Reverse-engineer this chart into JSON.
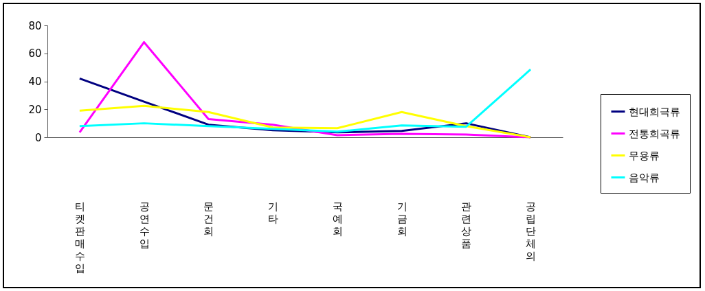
{
  "chart_data": {
    "type": "line",
    "categories": [
      "티켓판매수입",
      "공연수입",
      "문건회",
      "기타",
      "국예회",
      "기금회",
      "관련상품",
      "공립단체의"
    ],
    "series": [
      {
        "name": "현대희극류",
        "color": "#000080",
        "values": [
          42,
          25.5,
          9,
          5,
          3.5,
          4.5,
          10,
          0
        ]
      },
      {
        "name": "전통희곡류",
        "color": "#ff00ff",
        "values": [
          3.5,
          68,
          13,
          9,
          1.5,
          2.5,
          2,
          0
        ]
      },
      {
        "name": "무용류",
        "color": "#ffff00",
        "values": [
          19,
          22.5,
          18,
          7,
          6.5,
          18,
          8,
          0
        ]
      },
      {
        "name": "음악류",
        "color": "#00ffff",
        "values": [
          8,
          10,
          8,
          6,
          4,
          8.5,
          7.5,
          48.5
        ]
      }
    ],
    "ylim": [
      0,
      80
    ],
    "yticks": [
      0,
      20,
      40,
      60,
      80
    ],
    "legend": "right"
  }
}
